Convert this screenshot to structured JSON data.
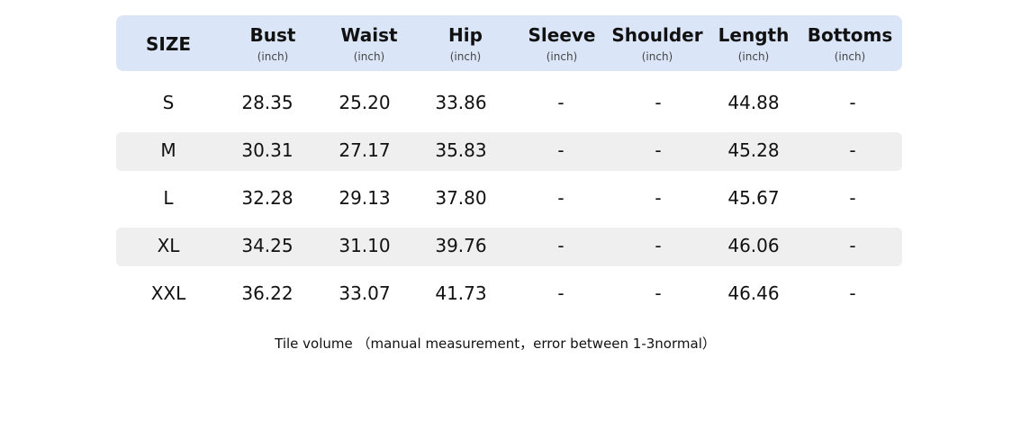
{
  "table": {
    "header_color": "#dae6f7",
    "stripe_color": "#efefef",
    "columns": [
      {
        "label": "SIZE",
        "unit": ""
      },
      {
        "label": "Bust",
        "unit": "(inch)"
      },
      {
        "label": "Waist",
        "unit": "(inch)"
      },
      {
        "label": "Hip",
        "unit": "(inch)"
      },
      {
        "label": "Sleeve",
        "unit": "(inch)"
      },
      {
        "label": "Shoulder",
        "unit": "(inch)"
      },
      {
        "label": "Length",
        "unit": "(inch)"
      },
      {
        "label": "Bottoms",
        "unit": "(inch)"
      }
    ],
    "rows": [
      [
        "S",
        "28.35",
        "25.20",
        "33.86",
        "-",
        "-",
        "44.88",
        "-"
      ],
      [
        "M",
        "30.31",
        "27.17",
        "35.83",
        "-",
        "-",
        "45.28",
        "-"
      ],
      [
        "L",
        "32.28",
        "29.13",
        "37.80",
        "-",
        "-",
        "45.67",
        "-"
      ],
      [
        "XL",
        "34.25",
        "31.10",
        "39.76",
        "-",
        "-",
        "46.06",
        "-"
      ],
      [
        "XXL",
        "36.22",
        "33.07",
        "41.73",
        "-",
        "-",
        "46.46",
        "-"
      ]
    ]
  },
  "note": "Tile volume （manual measurement，error between 1-3normal）"
}
